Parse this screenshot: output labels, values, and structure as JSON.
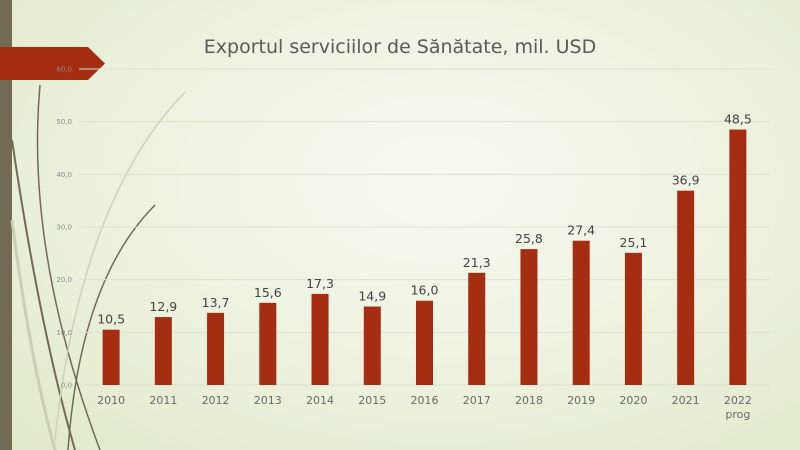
{
  "chart_data": {
    "type": "bar",
    "title": "Exportul serviciilor de Sănătate, mil. USD",
    "categories": [
      "2010",
      "2011",
      "2012",
      "2013",
      "2014",
      "2015",
      "2016",
      "2017",
      "2018",
      "2019",
      "2020",
      "2021",
      "2022 prog"
    ],
    "values": [
      10.5,
      12.9,
      13.7,
      15.6,
      17.3,
      14.9,
      16.0,
      21.3,
      25.8,
      27.4,
      25.1,
      36.9,
      48.5
    ],
    "data_labels": [
      "10,5",
      "12,9",
      "13,7",
      "15,6",
      "17,3",
      "14,9",
      "16,0",
      "21,3",
      "25,8",
      "27,4",
      "25,1",
      "36,9",
      "48,5"
    ],
    "yticks": [
      "0,0",
      "10,0",
      "20,0",
      "30,0",
      "40,0",
      "50,0",
      "60,0"
    ],
    "ylim": [
      0,
      60
    ],
    "grid": true,
    "xlabel": "",
    "ylabel": "",
    "bar_color": "#a52e12"
  }
}
